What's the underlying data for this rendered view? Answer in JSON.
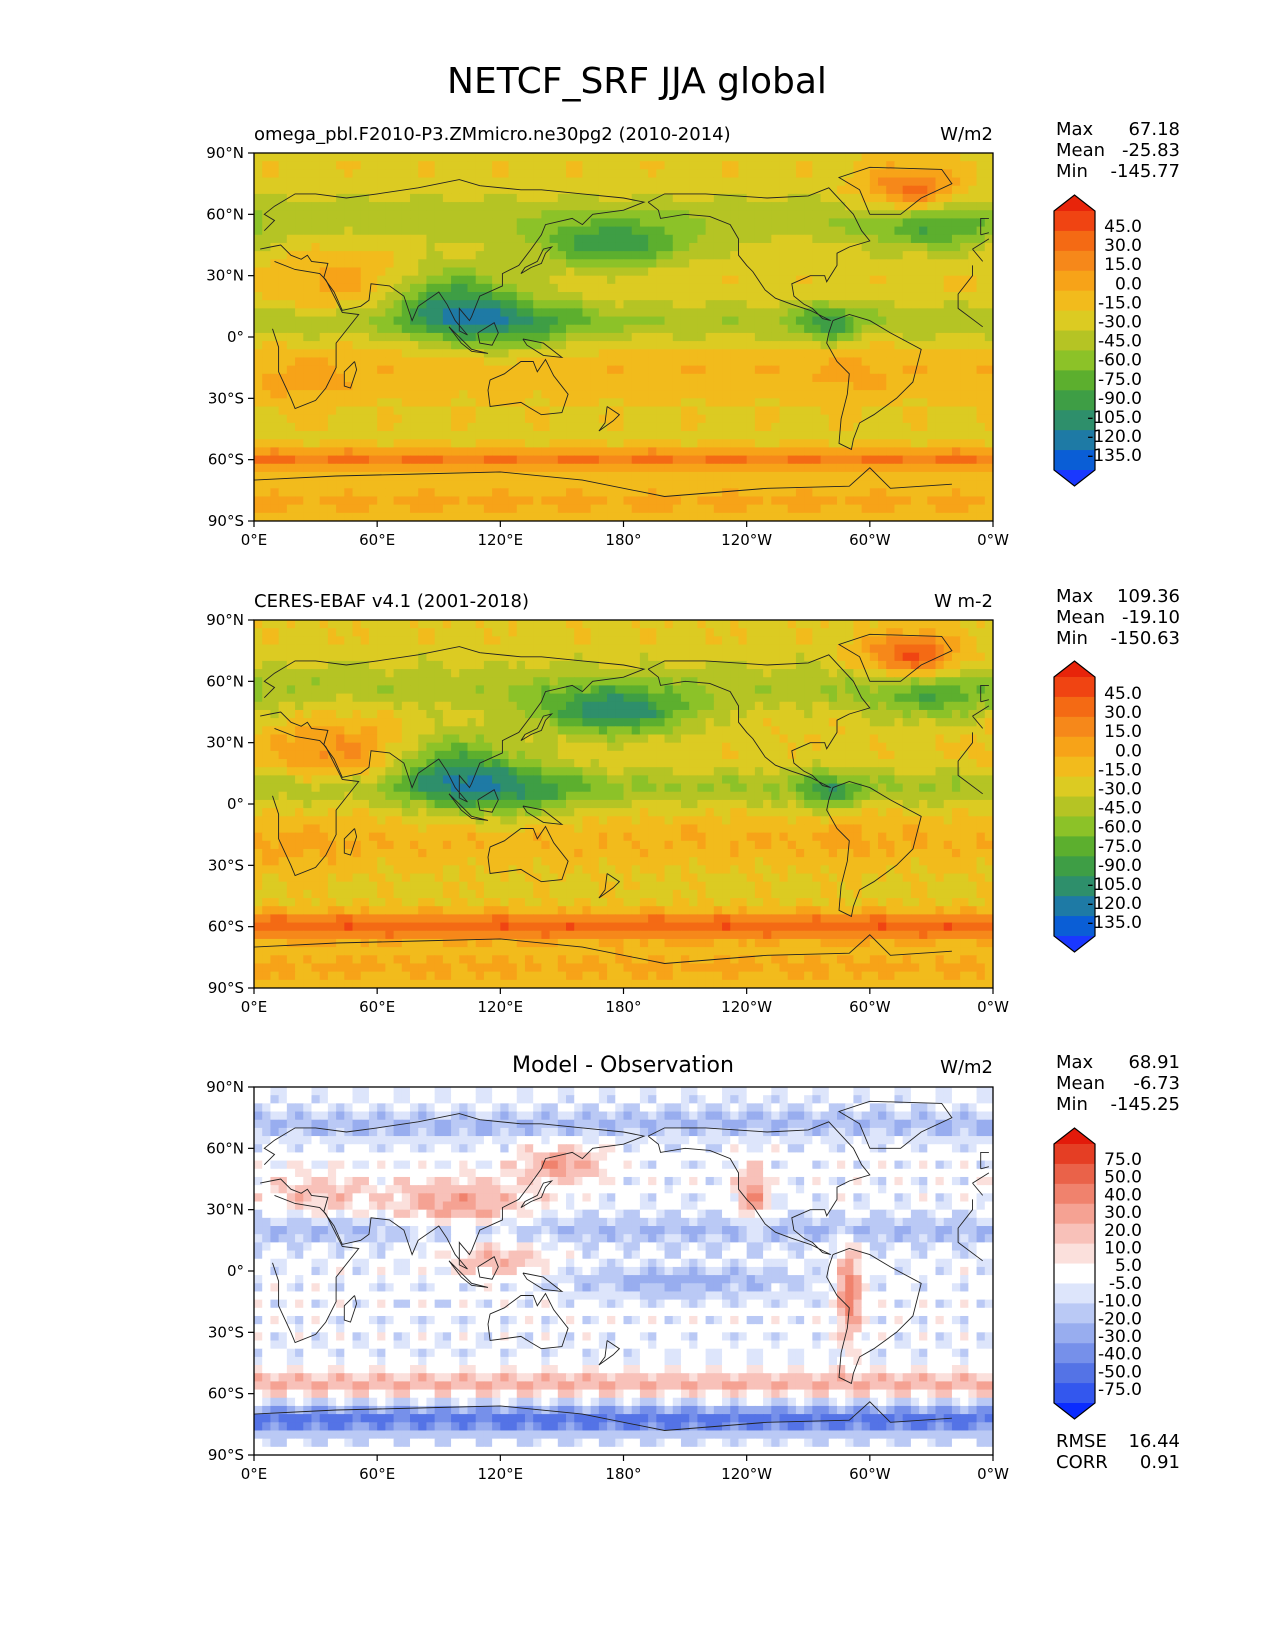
{
  "figure": {
    "title": "NETCF_SRF JJA global"
  },
  "axes": {
    "lat_ticks": [
      "90°N",
      "60°N",
      "30°N",
      "0°",
      "30°S",
      "60°S",
      "90°S"
    ],
    "lon_ticks": [
      "0°E",
      "60°E",
      "120°E",
      "180°",
      "120°W",
      "60°W",
      "0°W"
    ]
  },
  "colors": {
    "abs_scale": [
      "#1a38ff",
      "#0a5ed6",
      "#1e7aa5",
      "#2e8f6b",
      "#3e9e45",
      "#5caf2e",
      "#8cc228",
      "#b5c424",
      "#dccb22",
      "#f2bb1c",
      "#f7a318",
      "#f6881a",
      "#f46a14",
      "#f04412",
      "#e8240a"
    ],
    "diff_scale": [
      "#0a2cff",
      "#3357ee",
      "#5473e6",
      "#7690ea",
      "#98adef",
      "#bac9f5",
      "#dde5fb",
      "#ffffff",
      "#fbe0dc",
      "#f8c1b9",
      "#f5a293",
      "#f0826d",
      "#ea6249",
      "#e53e24",
      "#e31a0a"
    ],
    "coast": "#222222"
  },
  "chart_data": [
    {
      "type": "heatmap",
      "panel": "model",
      "title_left": "omega_pbl.F2010-P3.ZMmicro.ne30pg2 (2010-2014)",
      "units": "W/m2",
      "stats": {
        "max_label": "Max",
        "max": "67.18",
        "mean_label": "Mean",
        "mean": "-25.83",
        "min_label": "Min",
        "min": "-145.77"
      },
      "colorbar_levels": [
        "45.0",
        "30.0",
        "15.0",
        "0.0",
        "-15.0",
        "-30.0",
        "-45.0",
        "-60.0",
        "-75.0",
        "-90.0",
        "-105.0",
        "-120.0",
        "-135.0"
      ],
      "xlim": [
        0,
        360
      ],
      "ylim": [
        -90,
        90
      ],
      "variant": 0
    },
    {
      "type": "heatmap",
      "panel": "observation",
      "title_left": "CERES-EBAF v4.1 (2001-2018)",
      "units": "W m-2",
      "stats": {
        "max_label": "Max",
        "max": "109.36",
        "mean_label": "Mean",
        "mean": "-19.10",
        "min_label": "Min",
        "min": "-150.63"
      },
      "colorbar_levels": [
        "45.0",
        "30.0",
        "15.0",
        "0.0",
        "-15.0",
        "-30.0",
        "-45.0",
        "-60.0",
        "-75.0",
        "-90.0",
        "-105.0",
        "-120.0",
        "-135.0"
      ],
      "xlim": [
        0,
        360
      ],
      "ylim": [
        -90,
        90
      ],
      "variant": 1
    },
    {
      "type": "heatmap",
      "panel": "difference",
      "title_center": "Model - Observation",
      "units": "W/m2",
      "stats": {
        "max_label": "Max",
        "max": "68.91",
        "mean_label": "Mean",
        "mean": "-6.73",
        "min_label": "Min",
        "min": "-145.25"
      },
      "colorbar_levels": [
        "75.0",
        "50.0",
        "40.0",
        "30.0",
        "20.0",
        "10.0",
        "5.0",
        "-5.0",
        "-10.0",
        "-20.0",
        "-30.0",
        "-40.0",
        "-50.0",
        "-75.0"
      ],
      "metrics": {
        "rmse_label": "RMSE",
        "rmse": "16.44",
        "corr_label": "CORR",
        "corr": "0.91"
      },
      "xlim": [
        0,
        360
      ],
      "ylim": [
        -90,
        90
      ],
      "variant": 2
    }
  ]
}
